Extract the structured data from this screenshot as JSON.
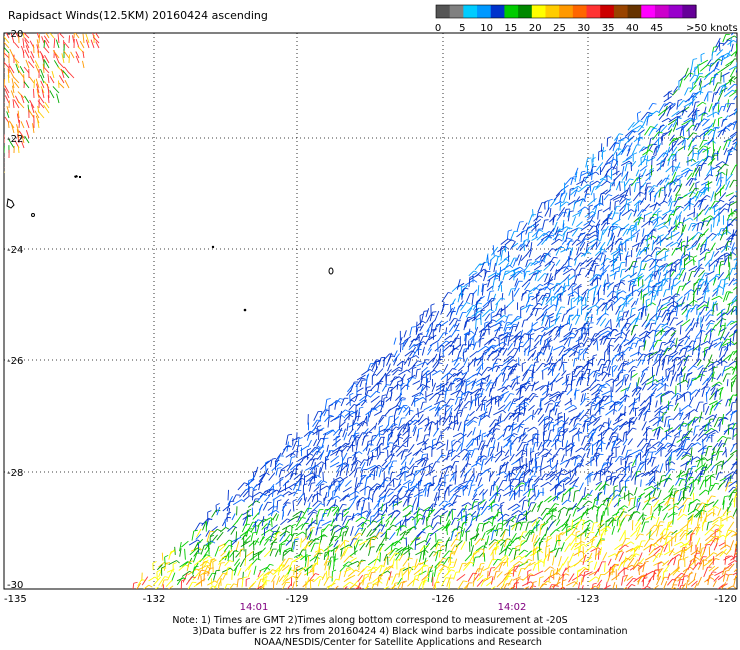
{
  "header": {
    "title": "Rapidsact Winds(12.5KM) 20160424 ascending"
  },
  "legend": {
    "unit": ">50 knots",
    "labels": [
      "0",
      "5",
      "10",
      "15",
      "20",
      "25",
      "30",
      "35",
      "40",
      "45"
    ],
    "colors": [
      "#555555",
      "#808080",
      "#00ccff",
      "#0099ff",
      "#0033cc",
      "#00cc00",
      "#008800",
      "#ffff00",
      "#ffcc00",
      "#ff9900",
      "#ff6600",
      "#ff3333",
      "#cc0000",
      "#994400",
      "#663300",
      "#ff00ff",
      "#cc00cc",
      "#9900cc",
      "#660099"
    ]
  },
  "axes": {
    "lon_labels": [
      "-135",
      "-132",
      "-129",
      "-126",
      "-123",
      "-120"
    ],
    "lat_labels": [
      "-20",
      "-22",
      "-24",
      "-26",
      "-28",
      "-30"
    ]
  },
  "pass_times": [
    "14:01",
    "14:02"
  ],
  "footer": {
    "line1": "Note: 1) Times are GMT 2)Times along bottom correspond to measurement at -20S",
    "line2": "3)Data buffer is 22 hrs from 20160424 4) Black wind barbs indicate possible contamination",
    "line3": "NOAA/NESDIS/Center for Satellite Applications and Research"
  }
}
